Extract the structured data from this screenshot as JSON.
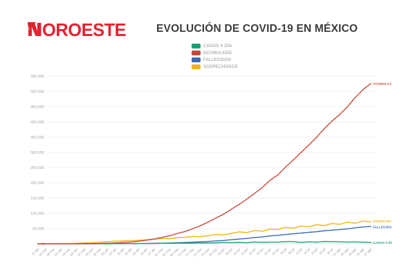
{
  "header": {
    "logo_text": "OROESTE",
    "logo_full_name": "NOROESTE",
    "logo_color": "#e42330",
    "title": "EVOLUCIÓN DE COVID-19 EN MÉXICO",
    "title_color": "#3c3c3c"
  },
  "legend": {
    "position": "top-center",
    "items": [
      {
        "label": "CASOS X DÍA",
        "color": "#18a377"
      },
      {
        "label": "ACUMULADO",
        "color": "#c9473a"
      },
      {
        "label": "FALLECIDOS",
        "color": "#3b6ab2"
      },
      {
        "label": "SOSPECHOSOS",
        "color": "#f0b417"
      }
    ]
  },
  "chart_data": {
    "type": "line",
    "title": "EVOLUCIÓN DE COVID-19 EN MÉXICO",
    "xlabel": "",
    "ylabel": "",
    "ylim": [
      0,
      550000
    ],
    "ytick_step": 50000,
    "ytick_labels": [
      "0",
      "50,000",
      "100,000",
      "150,000",
      "200,000",
      "250,000",
      "300,000",
      "350,000",
      "400,000",
      "450,000",
      "500,000",
      "550,000"
    ],
    "grid": "horizontal",
    "legend_position": "top-center",
    "x": [
      "27 feb",
      "02 mar",
      "06 mar",
      "10 mar",
      "14 mar",
      "18 mar",
      "22 mar",
      "26 mar",
      "30 mar",
      "03 abr",
      "07 abr",
      "11 abr",
      "15 abr",
      "19 abr",
      "23 abr",
      "27 abr",
      "01 may",
      "05 may",
      "09 may",
      "13 may",
      "17 may",
      "21 may",
      "25 may",
      "29 may",
      "02 jun",
      "06 jun",
      "10 jun",
      "14 jun",
      "18 jun",
      "22 jun",
      "26 jun",
      "30 jun",
      "04 jul",
      "08 jul",
      "12 jul",
      "16 jul",
      "20 jul",
      "24 jul",
      "28 jul",
      "01 ago",
      "05 ago",
      "09 ago",
      "13 ago",
      "17 ago"
    ],
    "series": [
      {
        "name": "CASOS X DÍA",
        "end_label": "CASOS X DÍ",
        "color": "#18a377",
        "values": [
          1,
          1,
          1,
          1,
          12,
          24,
          65,
          110,
          145,
          178,
          346,
          375,
          448,
          764,
          1043,
          835,
          1515,
          1434,
          1938,
          1862,
          2075,
          2973,
          2485,
          3227,
          3891,
          3593,
          4199,
          3494,
          5662,
          4577,
          5441,
          5432,
          6914,
          6995,
          4482,
          6406,
          5172,
          7573,
          6848,
          6500,
          5500,
          6000,
          5300,
          4400
        ]
      },
      {
        "name": "ACUMULADO",
        "end_label": "ACUMULAC",
        "color": "#c9473a",
        "values": [
          1,
          5,
          6,
          7,
          41,
          118,
          316,
          585,
          1094,
          1688,
          2785,
          4219,
          5847,
          8261,
          11633,
          15529,
          20739,
          26025,
          33460,
          40186,
          49219,
          59567,
          71105,
          84627,
          97326,
          113619,
          129184,
          146837,
          165455,
          185122,
          208392,
          226089,
          252165,
          275003,
          299750,
          324041,
          349396,
          378285,
          402697,
          424637,
          449961,
          480278,
          505751,
          525733
        ]
      },
      {
        "name": "FALLECIDOS",
        "end_label": "FALLECIDO",
        "color": "#3b6ab2",
        "values": [
          0,
          0,
          0,
          0,
          0,
          1,
          3,
          8,
          28,
          60,
          141,
          273,
          449,
          686,
          1069,
          1434,
          1972,
          2507,
          3353,
          4220,
          5177,
          6510,
          7633,
          9415,
          10637,
          13511,
          15357,
          17580,
          20394,
          22584,
          25779,
          27769,
          30366,
          32796,
          35006,
          37574,
          39485,
          42645,
          44876,
          46688,
          48869,
          52298,
          55293,
          56757
        ]
      },
      {
        "name": "SOSPECHOSOS",
        "end_label": "SOSPECHC",
        "color": "#f0b417",
        "values": [
          0,
          30,
          80,
          200,
          600,
          1500,
          2700,
          3500,
          4900,
          7100,
          8700,
          9400,
          10200,
          11300,
          13200,
          14900,
          17500,
          16300,
          19800,
          21100,
          24300,
          23100,
          26900,
          30500,
          29200,
          34300,
          38900,
          36700,
          43400,
          41200,
          48100,
          46400,
          53800,
          51200,
          57900,
          55600,
          62400,
          59800,
          66500,
          63900,
          70800,
          67200,
          74600,
          71900
        ]
      }
    ]
  }
}
